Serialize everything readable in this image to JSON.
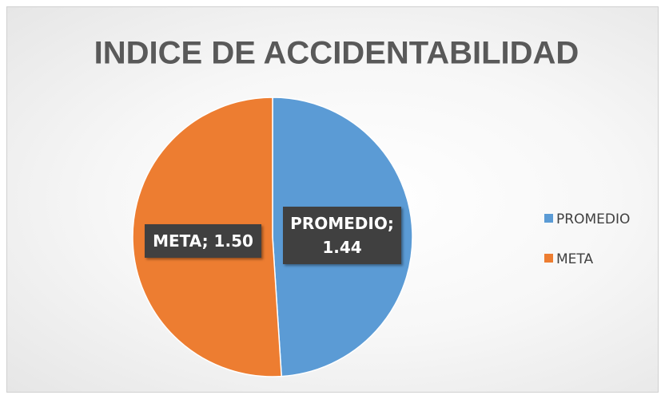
{
  "chart_data": {
    "type": "pie",
    "title": "INDICE DE ACCIDENTABILIDAD",
    "categories": [
      "PROMEDIO",
      "META"
    ],
    "values": [
      1.44,
      1.5
    ],
    "value_labels": [
      "PROMEDIO; 1.44",
      "META; 1.50"
    ],
    "colors": [
      "#5b9bd5",
      "#ed7d31"
    ],
    "legend": "right"
  }
}
